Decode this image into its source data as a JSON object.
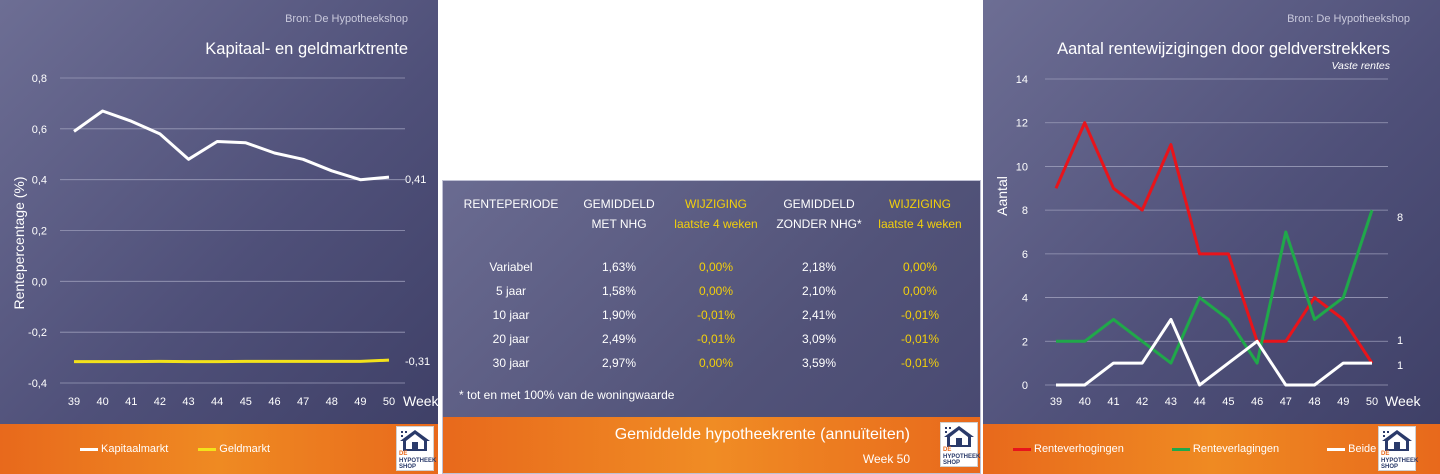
{
  "left_chart": {
    "source": "Bron: De Hypotheekshop",
    "legend": [
      {
        "label": "Kapitaalmarkt",
        "color": "#ffffff"
      },
      {
        "label": "Geldmarkt",
        "color": "#f3e21b"
      }
    ],
    "chart_data": {
      "type": "line",
      "title": "Kapitaal- en geldmarktrente",
      "xlabel": "Week",
      "ylabel": "Rentepercentage (%)",
      "x": [
        39,
        40,
        41,
        42,
        43,
        44,
        45,
        46,
        47,
        48,
        49,
        50
      ],
      "ylim": [
        -0.4,
        0.8
      ],
      "yticks": [
        "-0,4",
        "-0,2",
        "0,0",
        "0,2",
        "0,4",
        "0,6",
        "0,8"
      ],
      "grid": true,
      "series": [
        {
          "name": "Kapitaalmarkt",
          "color": "#ffffff",
          "values": [
            0.59,
            0.67,
            0.63,
            0.58,
            0.48,
            0.55,
            0.545,
            0.505,
            0.48,
            0.435,
            0.4,
            0.41
          ],
          "end_label": "0,41"
        },
        {
          "name": "Geldmarkt",
          "color": "#f3e21b",
          "values": [
            -0.316,
            -0.316,
            -0.316,
            -0.315,
            -0.316,
            -0.316,
            -0.315,
            -0.315,
            -0.315,
            -0.315,
            -0.315,
            -0.31
          ],
          "end_label": "-0,31"
        }
      ]
    }
  },
  "table": {
    "headers": [
      {
        "line1": "RENTEPERIODE",
        "line2": ""
      },
      {
        "line1": "GEMIDDELD",
        "line2": "MET NHG"
      },
      {
        "line1": "WIJZIGING",
        "line2": "laatste 4 weken"
      },
      {
        "line1": "GEMIDDELD",
        "line2": "ZONDER NHG*"
      },
      {
        "line1": "WIJZIGING",
        "line2": "laatste 4 weken"
      }
    ],
    "rows": [
      {
        "periode": "Variabel",
        "met_nhg": "1,63%",
        "wijziging_met": "0,00%",
        "zonder_nhg": "2,18%",
        "wijziging_zonder": "0,00%"
      },
      {
        "periode": "5 jaar",
        "met_nhg": "1,58%",
        "wijziging_met": "0,00%",
        "zonder_nhg": "2,10%",
        "wijziging_zonder": "0,00%"
      },
      {
        "periode": "10 jaar",
        "met_nhg": "1,90%",
        "wijziging_met": "-0,01%",
        "zonder_nhg": "2,41%",
        "wijziging_zonder": "-0,01%"
      },
      {
        "periode": "20 jaar",
        "met_nhg": "2,49%",
        "wijziging_met": "-0,01%",
        "zonder_nhg": "3,09%",
        "wijziging_zonder": "-0,01%"
      },
      {
        "periode": "30 jaar",
        "met_nhg": "2,97%",
        "wijziging_met": "0,00%",
        "zonder_nhg": "3,59%",
        "wijziging_zonder": "-0,01%"
      }
    ],
    "note": "* tot en met 100% van de woningwaarde",
    "footer_title": "Gemiddelde hypotheekrente (annuïteiten)",
    "footer_week": "Week 50"
  },
  "right_chart": {
    "source": "Bron: De Hypotheekshop",
    "legend": [
      {
        "label": "Renteverhogingen",
        "color": "#e8141b"
      },
      {
        "label": "Renteverlagingen",
        "color": "#20a84a"
      },
      {
        "label": "Beide",
        "color": "#ffffff"
      }
    ],
    "chart_data": {
      "type": "line",
      "title": "Aantal rentewijzigingen door geldverstrekkers",
      "subtitle": "Vaste rentes",
      "xlabel": "Week",
      "ylabel": "Aantal",
      "x": [
        39,
        40,
        41,
        42,
        43,
        44,
        45,
        46,
        47,
        48,
        49,
        50
      ],
      "ylim": [
        0,
        14
      ],
      "yticks": [
        "0",
        "2",
        "4",
        "6",
        "8",
        "10",
        "12",
        "14"
      ],
      "grid": true,
      "series": [
        {
          "name": "Renteverhogingen",
          "color": "#e8141b",
          "values": [
            9,
            12,
            9,
            8,
            11,
            6,
            6,
            2,
            2,
            4,
            3,
            1
          ],
          "end_label": "1"
        },
        {
          "name": "Renteverlagingen",
          "color": "#20a84a",
          "values": [
            2,
            2,
            3,
            2,
            1,
            4,
            3,
            1,
            7,
            3,
            4,
            8
          ],
          "end_label": "8"
        },
        {
          "name": "Beide",
          "color": "#ffffff",
          "values": [
            0,
            0,
            1,
            1,
            3,
            0,
            1,
            2,
            0,
            0,
            1,
            1
          ],
          "end_label": "1"
        }
      ]
    }
  },
  "logo": {
    "line1": "DE",
    "line2": "HYPOTHEEK",
    "line3": "SHOP"
  }
}
